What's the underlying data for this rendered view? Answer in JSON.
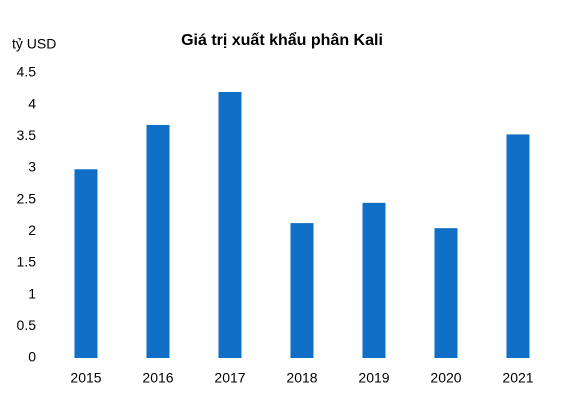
{
  "chart_data": {
    "type": "bar",
    "title": "Giá trị xuất khẩu phân Kali",
    "y_label": "tỷ USD",
    "categories": [
      "2015",
      "2016",
      "2017",
      "2018",
      "2019",
      "2020",
      "2021"
    ],
    "values": [
      2.98,
      3.68,
      4.2,
      2.13,
      2.45,
      2.05,
      3.53
    ],
    "color": "#0f6fc6",
    "ylim": [
      0,
      4.5
    ],
    "yticks": [
      0,
      0.5,
      1,
      1.5,
      2,
      2.5,
      3,
      3.5,
      4,
      4.5
    ],
    "grid": false
  }
}
